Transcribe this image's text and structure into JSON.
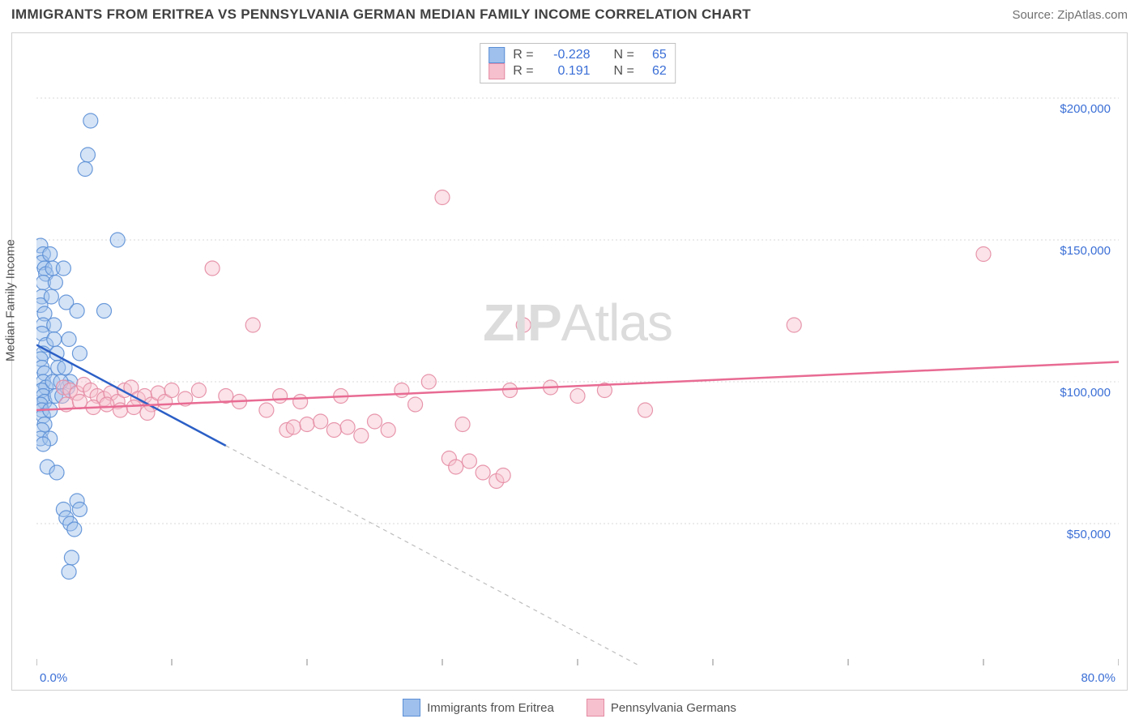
{
  "title": "IMMIGRANTS FROM ERITREA VS PENNSYLVANIA GERMAN MEDIAN FAMILY INCOME CORRELATION CHART",
  "source": "Source: ZipAtlas.com",
  "watermark_bold": "ZIP",
  "watermark_rest": "Atlas",
  "y_axis_label": "Median Family Income",
  "chart": {
    "type": "scatter",
    "xlim": [
      0,
      80
    ],
    "ylim": [
      0,
      220000
    ],
    "x_tick_positions": [
      0,
      10,
      20,
      30,
      40,
      50,
      60,
      70,
      80
    ],
    "x_tick_labels": {
      "0": "0.0%",
      "80": "80.0%"
    },
    "y_gridlines": [
      50000,
      100000,
      150000,
      200000
    ],
    "y_tick_labels": [
      "$50,000",
      "$100,000",
      "$150,000",
      "$200,000"
    ],
    "grid_color": "#dadada",
    "grid_dash": "2,3",
    "axis_color": "#888888",
    "background": "#ffffff",
    "label_color": "#3b6fd6",
    "font_size_labels": 15,
    "marker_radius": 9,
    "marker_opacity": 0.45,
    "series": [
      {
        "name": "Immigrants from Eritrea",
        "fill": "#9fc0ec",
        "stroke": "#5b8fd6",
        "trend_color": "#2b5fc6",
        "trend_width": 2.5,
        "trend": {
          "x1": 0,
          "y1": 113000,
          "x2": 80,
          "y2": -90000
        },
        "trend_dash_after_x": 14,
        "R": "-0.228",
        "N": "65",
        "points": [
          [
            0.3,
            148000
          ],
          [
            0.5,
            145000
          ],
          [
            0.4,
            142000
          ],
          [
            0.6,
            140000
          ],
          [
            0.7,
            138000
          ],
          [
            0.5,
            135000
          ],
          [
            0.4,
            130000
          ],
          [
            0.3,
            127000
          ],
          [
            0.6,
            124000
          ],
          [
            0.5,
            120000
          ],
          [
            0.4,
            117000
          ],
          [
            0.7,
            113000
          ],
          [
            0.5,
            110000
          ],
          [
            0.3,
            108000
          ],
          [
            0.4,
            105000
          ],
          [
            0.6,
            103000
          ],
          [
            0.5,
            100000
          ],
          [
            0.7,
            98000
          ],
          [
            0.4,
            97000
          ],
          [
            0.5,
            95000
          ],
          [
            0.6,
            93000
          ],
          [
            0.3,
            92000
          ],
          [
            0.4,
            90000
          ],
          [
            0.5,
            88000
          ],
          [
            0.6,
            85000
          ],
          [
            0.4,
            83000
          ],
          [
            0.3,
            80000
          ],
          [
            1.0,
            145000
          ],
          [
            1.2,
            140000
          ],
          [
            1.4,
            135000
          ],
          [
            1.1,
            130000
          ],
          [
            1.3,
            120000
          ],
          [
            1.5,
            110000
          ],
          [
            1.6,
            105000
          ],
          [
            1.2,
            100000
          ],
          [
            1.4,
            95000
          ],
          [
            1.0,
            90000
          ],
          [
            1.3,
            115000
          ],
          [
            2.0,
            140000
          ],
          [
            2.2,
            128000
          ],
          [
            2.4,
            115000
          ],
          [
            2.1,
            105000
          ],
          [
            2.3,
            98000
          ],
          [
            2.5,
            100000
          ],
          [
            3.0,
            125000
          ],
          [
            3.2,
            110000
          ],
          [
            4.0,
            192000
          ],
          [
            3.8,
            180000
          ],
          [
            3.6,
            175000
          ],
          [
            1.8,
            100000
          ],
          [
            1.9,
            95000
          ],
          [
            5.0,
            125000
          ],
          [
            6.0,
            150000
          ],
          [
            0.8,
            70000
          ],
          [
            1.5,
            68000
          ],
          [
            2.0,
            55000
          ],
          [
            2.2,
            52000
          ],
          [
            2.5,
            50000
          ],
          [
            2.8,
            48000
          ],
          [
            3.0,
            58000
          ],
          [
            3.2,
            55000
          ],
          [
            2.6,
            38000
          ],
          [
            2.4,
            33000
          ],
          [
            1.0,
            80000
          ],
          [
            0.5,
            78000
          ]
        ]
      },
      {
        "name": "Pennsylvania Germans",
        "fill": "#f6c0ce",
        "stroke": "#e48ba3",
        "trend_color": "#e86b93",
        "trend_width": 2.5,
        "trend": {
          "x1": 0,
          "y1": 90000,
          "x2": 80,
          "y2": 107000
        },
        "R": "0.191",
        "N": "62",
        "points": [
          [
            2.0,
            98000
          ],
          [
            2.5,
            97000
          ],
          [
            3.0,
            96000
          ],
          [
            3.5,
            99000
          ],
          [
            4.0,
            97000
          ],
          [
            4.5,
            95000
          ],
          [
            5.0,
            94000
          ],
          [
            5.5,
            96000
          ],
          [
            6.0,
            93000
          ],
          [
            6.5,
            97000
          ],
          [
            7.0,
            98000
          ],
          [
            7.5,
            94000
          ],
          [
            8.0,
            95000
          ],
          [
            8.5,
            92000
          ],
          [
            9.0,
            96000
          ],
          [
            9.5,
            93000
          ],
          [
            10.0,
            97000
          ],
          [
            11.0,
            94000
          ],
          [
            12.0,
            97000
          ],
          [
            13.0,
            140000
          ],
          [
            14.0,
            95000
          ],
          [
            15.0,
            93000
          ],
          [
            16.0,
            120000
          ],
          [
            17.0,
            90000
          ],
          [
            18.0,
            95000
          ],
          [
            18.5,
            83000
          ],
          [
            19.0,
            84000
          ],
          [
            19.5,
            93000
          ],
          [
            20.0,
            85000
          ],
          [
            21.0,
            86000
          ],
          [
            22.0,
            83000
          ],
          [
            22.5,
            95000
          ],
          [
            23.0,
            84000
          ],
          [
            24.0,
            81000
          ],
          [
            25.0,
            86000
          ],
          [
            26.0,
            83000
          ],
          [
            27.0,
            97000
          ],
          [
            28.0,
            92000
          ],
          [
            29.0,
            100000
          ],
          [
            30.0,
            165000
          ],
          [
            30.5,
            73000
          ],
          [
            31.0,
            70000
          ],
          [
            31.5,
            85000
          ],
          [
            32.0,
            72000
          ],
          [
            33.0,
            68000
          ],
          [
            34.0,
            65000
          ],
          [
            34.5,
            67000
          ],
          [
            35.0,
            97000
          ],
          [
            36.0,
            120000
          ],
          [
            38.0,
            98000
          ],
          [
            40.0,
            95000
          ],
          [
            42.0,
            97000
          ],
          [
            45.0,
            90000
          ],
          [
            56.0,
            120000
          ],
          [
            70.0,
            145000
          ],
          [
            2.2,
            92000
          ],
          [
            3.2,
            93000
          ],
          [
            4.2,
            91000
          ],
          [
            5.2,
            92000
          ],
          [
            6.2,
            90000
          ],
          [
            7.2,
            91000
          ],
          [
            8.2,
            89000
          ]
        ]
      }
    ]
  },
  "bottom_legend": [
    {
      "label": "Immigrants from Eritrea",
      "fill": "#9fc0ec",
      "stroke": "#5b8fd6"
    },
    {
      "label": "Pennsylvania Germans",
      "fill": "#f6c0ce",
      "stroke": "#e48ba3"
    }
  ]
}
